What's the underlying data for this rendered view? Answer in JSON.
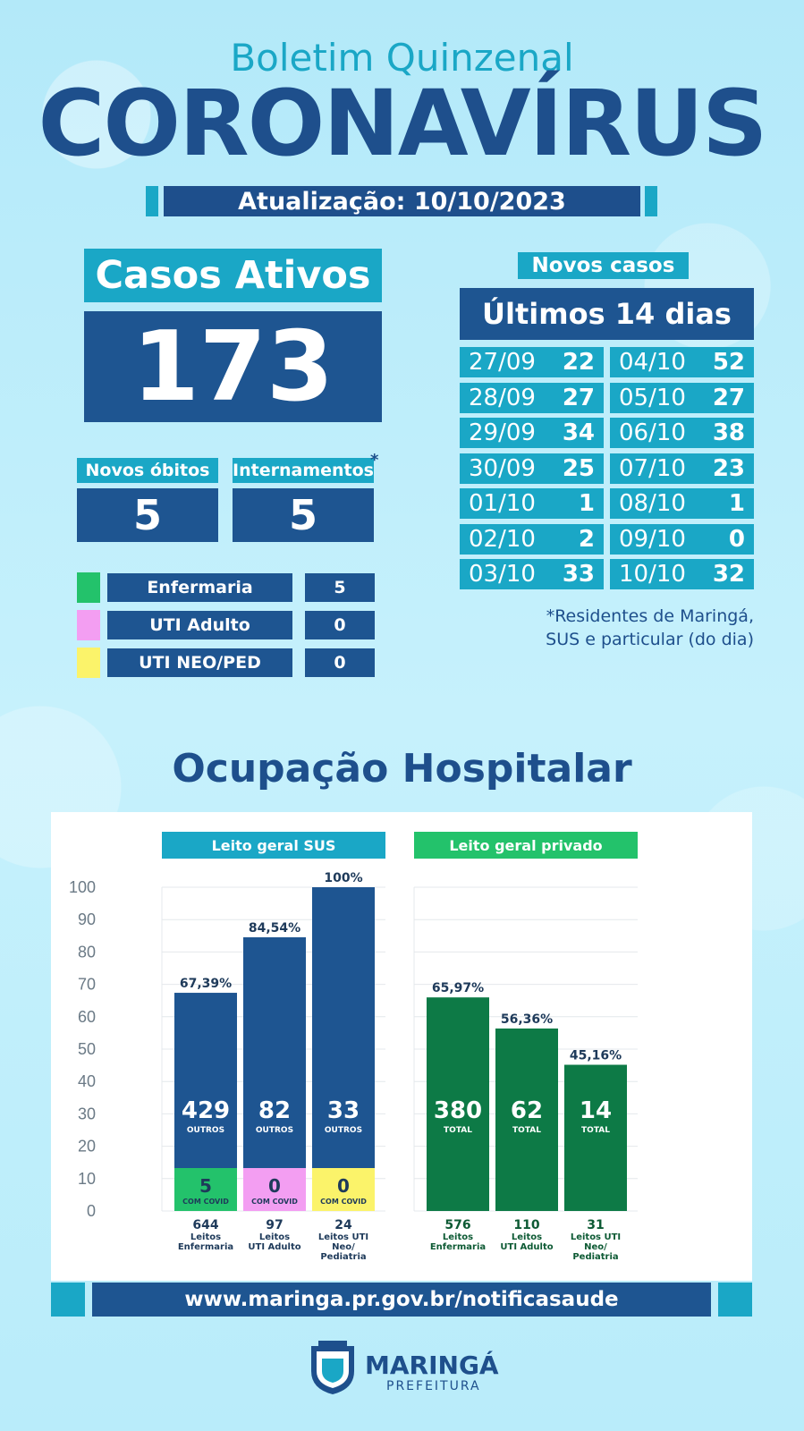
{
  "header": {
    "subtitle": "Boletim Quinzenal",
    "title": "CORONAVÍRUS",
    "update": "Atualização: 10/10/2023"
  },
  "active_cases": {
    "label": "Casos Ativos",
    "value": "173"
  },
  "stats": {
    "deaths_label": "Novos óbitos",
    "deaths_value": "5",
    "hosp_label": "Internamentos",
    "hosp_value": "5",
    "asterisk": "*"
  },
  "legend": [
    {
      "name": "Enfermaria",
      "value": "5",
      "color": "#23c26b"
    },
    {
      "name": "UTI Adulto",
      "value": "0",
      "color": "#f39ef2"
    },
    {
      "name": "UTI NEO/PED",
      "value": "0",
      "color": "#fbf36a"
    }
  ],
  "new_cases": {
    "label": "Novos casos",
    "period": "Últimos 14 dias",
    "left": [
      {
        "date": "27/09",
        "n": "22"
      },
      {
        "date": "28/09",
        "n": "27"
      },
      {
        "date": "29/09",
        "n": "34"
      },
      {
        "date": "30/09",
        "n": "25"
      },
      {
        "date": "01/10",
        "n": "1"
      },
      {
        "date": "02/10",
        "n": "2"
      },
      {
        "date": "03/10",
        "n": "33"
      }
    ],
    "right": [
      {
        "date": "04/10",
        "n": "52"
      },
      {
        "date": "05/10",
        "n": "27"
      },
      {
        "date": "06/10",
        "n": "38"
      },
      {
        "date": "07/10",
        "n": "23"
      },
      {
        "date": "08/10",
        "n": "1"
      },
      {
        "date": "09/10",
        "n": "0"
      },
      {
        "date": "10/10",
        "n": "32"
      }
    ],
    "footnote_1": "*Residentes de Maringá,",
    "footnote_2": "SUS e particular (do dia)"
  },
  "occupancy_title": "Ocupação Hospitalar",
  "chart_data": {
    "type": "bar",
    "ylim": [
      0,
      100
    ],
    "yticks": [
      "100",
      "90",
      "80",
      "70",
      "60",
      "50",
      "40",
      "30",
      "20",
      "10",
      "0"
    ],
    "groups": [
      {
        "title": "Leito geral SUS",
        "color": "#1e5591",
        "title_color": "#1aa7c6",
        "bars": [
          {
            "pct": 67.39,
            "pct_label": "67,39%",
            "main": "429",
            "main_label": "OUTROS",
            "covid": "5",
            "covid_label": "COM COVID",
            "covid_color": "#23c26b",
            "beds": "644",
            "cat1": "Leitos",
            "cat2": "Enfermaria",
            "cat3": ""
          },
          {
            "pct": 84.54,
            "pct_label": "84,54%",
            "main": "82",
            "main_label": "OUTROS",
            "covid": "0",
            "covid_label": "COM COVID",
            "covid_color": "#f39ef2",
            "beds": "97",
            "cat1": "Leitos",
            "cat2": "UTI Adulto",
            "cat3": ""
          },
          {
            "pct": 100,
            "pct_label": "100%",
            "main": "33",
            "main_label": "OUTROS",
            "covid": "0",
            "covid_label": "COM COVID",
            "covid_color": "#fbf36a",
            "beds": "24",
            "cat1": "Leitos UTI",
            "cat2": "Neo/",
            "cat3": "Pediatria"
          }
        ]
      },
      {
        "title": "Leito geral privado",
        "color": "#0d7a46",
        "title_color": "#23c26b",
        "bars": [
          {
            "pct": 65.97,
            "pct_label": "65,97%",
            "main": "380",
            "main_label": "TOTAL",
            "beds": "576",
            "cat1": "Leitos",
            "cat2": "Enfermaria",
            "cat3": ""
          },
          {
            "pct": 56.36,
            "pct_label": "56,36%",
            "main": "62",
            "main_label": "TOTAL",
            "beds": "110",
            "cat1": "Leitos",
            "cat2": "UTI Adulto",
            "cat3": ""
          },
          {
            "pct": 45.16,
            "pct_label": "45,16%",
            "main": "14",
            "main_label": "TOTAL",
            "beds": "31",
            "cat1": "Leitos UTI",
            "cat2": "Neo/",
            "cat3": "Pediatria"
          }
        ]
      }
    ]
  },
  "footer": {
    "url": "www.maringa.pr.gov.br/notificasaude",
    "logo_name": "MARINGÁ",
    "logo_sub": "PREFEITURA"
  }
}
